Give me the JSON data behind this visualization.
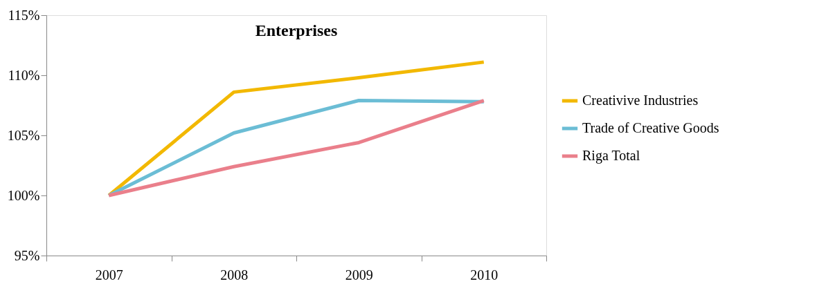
{
  "chart_data": {
    "type": "line",
    "title": "Enterprises",
    "categories": [
      "2007",
      "2008",
      "2009",
      "2010"
    ],
    "series": [
      {
        "name": "Creativive Industries",
        "color": "#f2b800",
        "values": [
          100,
          108.6,
          109.8,
          111.1
        ]
      },
      {
        "name": "Trade of Creative Goods",
        "color": "#6bbdd5",
        "values": [
          100,
          105.2,
          107.9,
          107.8
        ]
      },
      {
        "name": "Riga Total",
        "color": "#ea7f8b",
        "values": [
          100,
          102.4,
          104.4,
          107.9
        ]
      }
    ],
    "ylim": [
      95,
      115
    ],
    "yticks": [
      {
        "value": 95,
        "label": "95%"
      },
      {
        "value": 100,
        "label": "100%"
      },
      {
        "value": 105,
        "label": "105%"
      },
      {
        "value": 110,
        "label": "110%"
      },
      {
        "value": 115,
        "label": "115%"
      }
    ],
    "grid": false,
    "legend": "right",
    "marker": "none",
    "line_style": "solid"
  }
}
